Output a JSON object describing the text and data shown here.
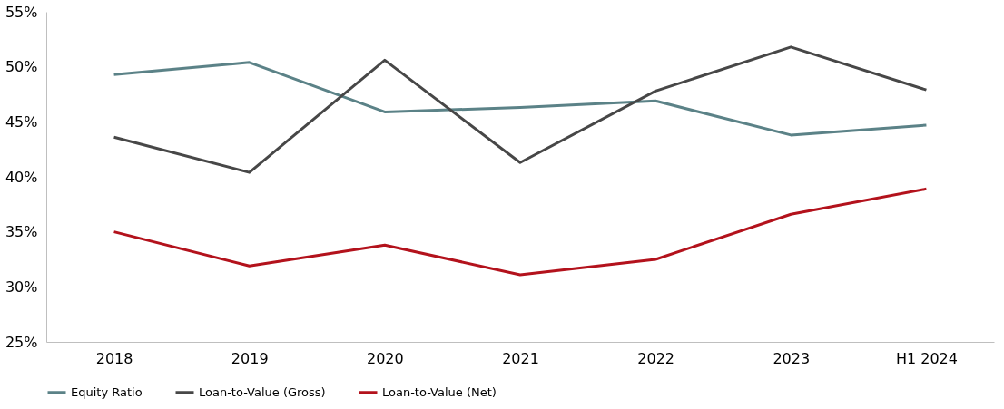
{
  "chart_data": {
    "type": "line",
    "categories": [
      "2018",
      "2019",
      "2020",
      "2021",
      "2022",
      "2023",
      "H1 2024"
    ],
    "series": [
      {
        "name": "Equity Ratio",
        "color": "#5b8287",
        "values": [
          49.3,
          50.4,
          45.9,
          46.3,
          46.9,
          43.8,
          44.7
        ]
      },
      {
        "name": "Loan-to-Value (Gross)",
        "color": "#474747",
        "values": [
          43.6,
          40.4,
          50.6,
          41.3,
          47.8,
          51.8,
          47.9
        ]
      },
      {
        "name": "Loan-to-Value (Net)",
        "color": "#b3121c",
        "values": [
          35.0,
          31.9,
          33.8,
          31.1,
          32.5,
          36.6,
          38.9
        ]
      }
    ],
    "ylim": [
      25,
      55
    ],
    "yticks": [
      {
        "value": 25,
        "label": "25%"
      },
      {
        "value": 30,
        "label": "30%"
      },
      {
        "value": 35,
        "label": "35%"
      },
      {
        "value": 40,
        "label": "40%"
      },
      {
        "value": 45,
        "label": "45%"
      },
      {
        "value": 50,
        "label": "50%"
      },
      {
        "value": 55,
        "label": "55%"
      }
    ],
    "grid": false,
    "legend": "bottom",
    "marker": "none",
    "line_style": "solid"
  }
}
